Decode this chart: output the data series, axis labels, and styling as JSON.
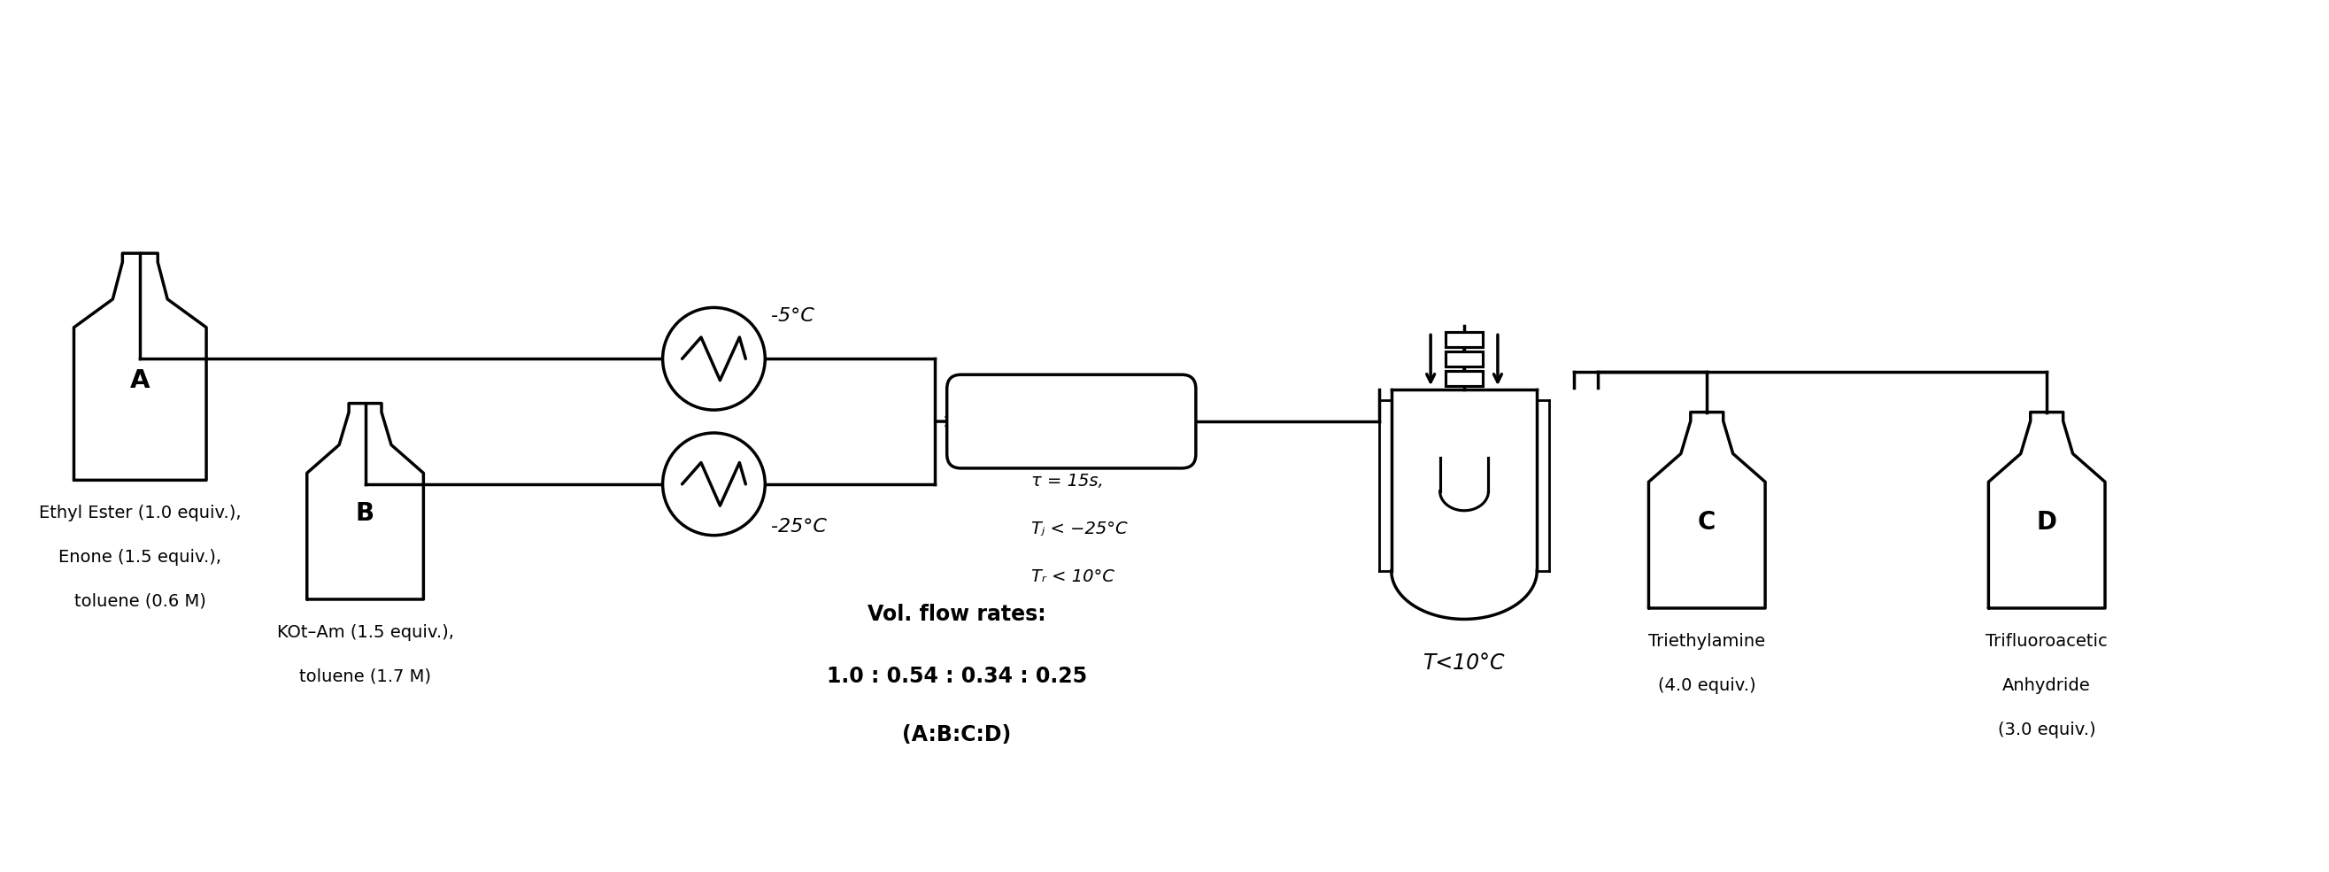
{
  "bg_color": "#ffffff",
  "lc": "#000000",
  "lw": 2.5,
  "fig_w": 26.31,
  "fig_h": 9.85,
  "temp_1": "-5°C",
  "temp_2": "-25°C",
  "tau_text": "τ = 15s,",
  "tj_text": "Tⱼ < −25°C",
  "tr_text": "Tᵣ < 10°C",
  "reactor_temp": "T<10°C",
  "flow_title": "Vol. flow rates:",
  "flow_vals": "1.0 : 0.54 : 0.34 : 0.25",
  "flow_sub": "(A:B:C:D)",
  "text_A_line1": "Ethyl Ester (1.0 equiv.),",
  "text_A_line2": "Enone (1.5 equiv.),",
  "text_A_line3": "toluene (0.6 M)",
  "text_B_line1": "KOt–Am (1.5 equiv.),",
  "text_B_line2": "toluene (1.7 M)",
  "text_C_line1": "Triethylamine",
  "text_C_line2": "(4.0 equiv.)",
  "text_D_line1": "Trifluoroacetic",
  "text_D_line2": "Anhydride",
  "text_D_line3": "(3.0 equiv.)"
}
